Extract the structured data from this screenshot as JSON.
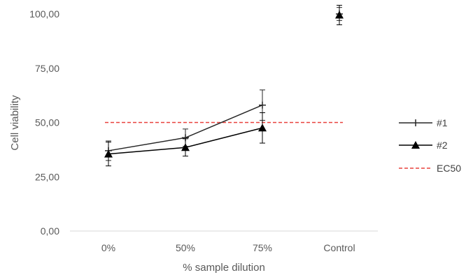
{
  "chart_data": {
    "type": "line",
    "categories": [
      "0%",
      "50%",
      "75%",
      "Control"
    ],
    "xlabel": "% sample dilution",
    "ylabel": "Cell viability",
    "ylim": [
      0,
      100
    ],
    "yticks": [
      "0,00",
      "25,00",
      "50,00",
      "75,00",
      "100,00"
    ],
    "grid": false,
    "legend_position": "right",
    "series": [
      {
        "name": "#1",
        "marker": "plus",
        "color": "#262626",
        "values": [
          37,
          43,
          58,
          100
        ],
        "error": [
          4.5,
          4,
          7,
          3
        ],
        "connected": [
          true,
          true,
          true,
          false
        ]
      },
      {
        "name": "#2",
        "marker": "triangle",
        "color": "#000000",
        "values": [
          35.5,
          38.5,
          47.5,
          99.5
        ],
        "error": [
          5.5,
          4,
          7,
          4.5
        ],
        "connected": [
          true,
          true,
          true,
          false
        ]
      },
      {
        "name": "EC50",
        "marker": "none",
        "color": "#e8413c",
        "dashed": true,
        "values": [
          50,
          50,
          50,
          50
        ]
      }
    ]
  }
}
